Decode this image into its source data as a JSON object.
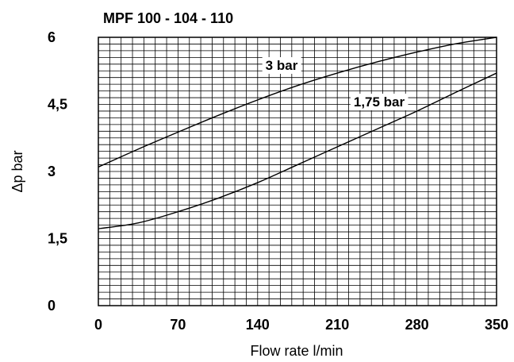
{
  "chart_data": {
    "type": "line",
    "title": "MPF 100 - 104 - 110",
    "xlabel": "Flow rate l/min",
    "ylabel": "Δp bar",
    "xlim": [
      0,
      350
    ],
    "ylim": [
      0,
      6
    ],
    "x_ticks": [
      "0",
      "70",
      "140",
      "210",
      "280",
      "350"
    ],
    "y_ticks": [
      "0",
      "1,5",
      "3",
      "4,5",
      "6"
    ],
    "grid": true,
    "series": [
      {
        "name": "3 bar",
        "x": [
          0,
          35,
          70,
          105,
          140,
          175,
          210,
          245,
          280,
          315,
          350
        ],
        "y": [
          3.1,
          3.5,
          3.88,
          4.25,
          4.6,
          4.92,
          5.2,
          5.45,
          5.67,
          5.86,
          6.0
        ]
      },
      {
        "name": "1,75 bar",
        "x": [
          0,
          35,
          70,
          105,
          140,
          175,
          210,
          245,
          280,
          315,
          350
        ],
        "y": [
          1.72,
          1.85,
          2.1,
          2.4,
          2.75,
          3.15,
          3.55,
          3.95,
          4.35,
          4.78,
          5.2
        ]
      }
    ]
  }
}
